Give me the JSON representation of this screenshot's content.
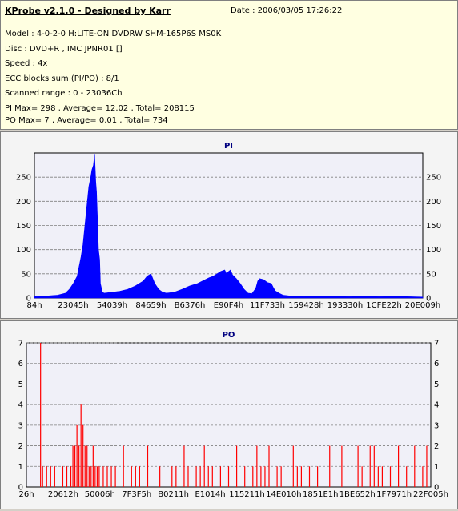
{
  "header": {
    "title": "KProbe v2.1.0 - Designed by Karr",
    "date": "Date : 2006/03/05 17:26:22",
    "lines": [
      "Model : 4-0-2-0 H:LITE-ON DVDRW SHM-165P6S MS0K",
      "Disc : DVD+R , IMC JPNR01 []",
      "Speed : 4x",
      "ECC blocks sum (PI/PO) : 8/1",
      "Scanned range : 0 - 23036Ch",
      "PI Max= 298 , Average= 12.02 , Total= 208115",
      "PO Max= 7 , Average= 0.01 , Total= 734"
    ]
  },
  "colors": {
    "pi": "#0000ff",
    "po": "#ff0000",
    "plot_bg": "#f0f0f8",
    "title": "#000080"
  },
  "chart_data": [
    {
      "type": "area",
      "title": "PI",
      "ylim": [
        0,
        300
      ],
      "yticks": [
        0,
        50,
        100,
        150,
        200,
        250
      ],
      "xlim": [
        0,
        1
      ],
      "xtick_labels": [
        "84h",
        "23045h",
        "54039h",
        "84659h",
        "B6376h",
        "E90F4h",
        "11F733h",
        "159428h",
        "193330h",
        "1CFE22h",
        "20E009h"
      ],
      "grid": true,
      "series": [
        {
          "x": [
            0,
            0.03,
            0.06,
            0.08,
            0.09,
            0.1,
            0.11,
            0.115,
            0.12,
            0.125,
            0.13,
            0.135,
            0.14,
            0.145,
            0.148,
            0.15,
            0.152,
            0.155,
            0.158,
            0.16,
            0.163,
            0.165,
            0.168,
            0.17,
            0.175,
            0.18,
            0.2,
            0.22,
            0.24,
            0.26,
            0.27,
            0.28,
            0.29,
            0.3,
            0.31,
            0.32,
            0.33,
            0.34,
            0.36,
            0.38,
            0.4,
            0.42,
            0.44,
            0.45,
            0.46,
            0.47,
            0.48,
            0.49,
            0.495,
            0.5,
            0.505,
            0.51,
            0.52,
            0.53,
            0.54,
            0.55,
            0.56,
            0.57,
            0.575,
            0.58,
            0.59,
            0.6,
            0.61,
            0.615,
            0.62,
            0.63,
            0.64,
            0.66,
            0.7,
            0.75,
            0.8,
            0.85,
            0.9,
            0.95,
            1.0
          ],
          "values": [
            3,
            4,
            6,
            10,
            18,
            30,
            45,
            65,
            85,
            110,
            150,
            190,
            230,
            250,
            265,
            270,
            275,
            298,
            240,
            220,
            150,
            100,
            80,
            30,
            12,
            10,
            12,
            14,
            18,
            25,
            30,
            35,
            45,
            50,
            30,
            18,
            12,
            10,
            12,
            18,
            25,
            30,
            38,
            42,
            45,
            50,
            55,
            58,
            50,
            55,
            58,
            48,
            40,
            30,
            18,
            10,
            9,
            20,
            35,
            40,
            38,
            32,
            30,
            22,
            15,
            10,
            6,
            4,
            3,
            3,
            3,
            4,
            3,
            3,
            2
          ]
        }
      ]
    },
    {
      "type": "bar",
      "title": "PO",
      "ylim": [
        0,
        7
      ],
      "yticks": [
        0,
        1,
        2,
        3,
        4,
        5,
        6,
        7
      ],
      "xlim": [
        0,
        1
      ],
      "xtick_labels": [
        "26h",
        "20612h",
        "50006h",
        "7F3F5h",
        "B0211h",
        "E1014h",
        "115211h",
        "14E010h",
        "1851E1h",
        "1BE652h",
        "1F7971h",
        "22F005h"
      ],
      "grid": true,
      "series": [
        {
          "x": [
            0.035,
            0.04,
            0.05,
            0.06,
            0.07,
            0.09,
            0.1,
            0.11,
            0.115,
            0.12,
            0.125,
            0.13,
            0.135,
            0.14,
            0.145,
            0.15,
            0.155,
            0.16,
            0.165,
            0.17,
            0.175,
            0.18,
            0.19,
            0.2,
            0.21,
            0.22,
            0.24,
            0.26,
            0.27,
            0.28,
            0.3,
            0.33,
            0.36,
            0.37,
            0.39,
            0.4,
            0.42,
            0.43,
            0.44,
            0.45,
            0.46,
            0.48,
            0.5,
            0.52,
            0.54,
            0.56,
            0.57,
            0.58,
            0.59,
            0.6,
            0.62,
            0.63,
            0.66,
            0.67,
            0.68,
            0.7,
            0.72,
            0.75,
            0.78,
            0.82,
            0.83,
            0.85,
            0.86,
            0.87,
            0.88,
            0.9,
            0.92,
            0.94,
            0.96,
            0.98,
            0.99
          ],
          "values": [
            7,
            1,
            1,
            1,
            1,
            1,
            1,
            1,
            2,
            2,
            3,
            2,
            4,
            3,
            2,
            2,
            1,
            1,
            2,
            1,
            1,
            1,
            1,
            1,
            1,
            1,
            2,
            1,
            1,
            1,
            2,
            1,
            1,
            1,
            2,
            1,
            1,
            1,
            2,
            1,
            1,
            1,
            1,
            2,
            1,
            1,
            2,
            1,
            1,
            2,
            1,
            1,
            2,
            1,
            1,
            1,
            1,
            2,
            2,
            2,
            1,
            2,
            2,
            1,
            1,
            1,
            2,
            1,
            2,
            1,
            2
          ]
        }
      ]
    }
  ]
}
